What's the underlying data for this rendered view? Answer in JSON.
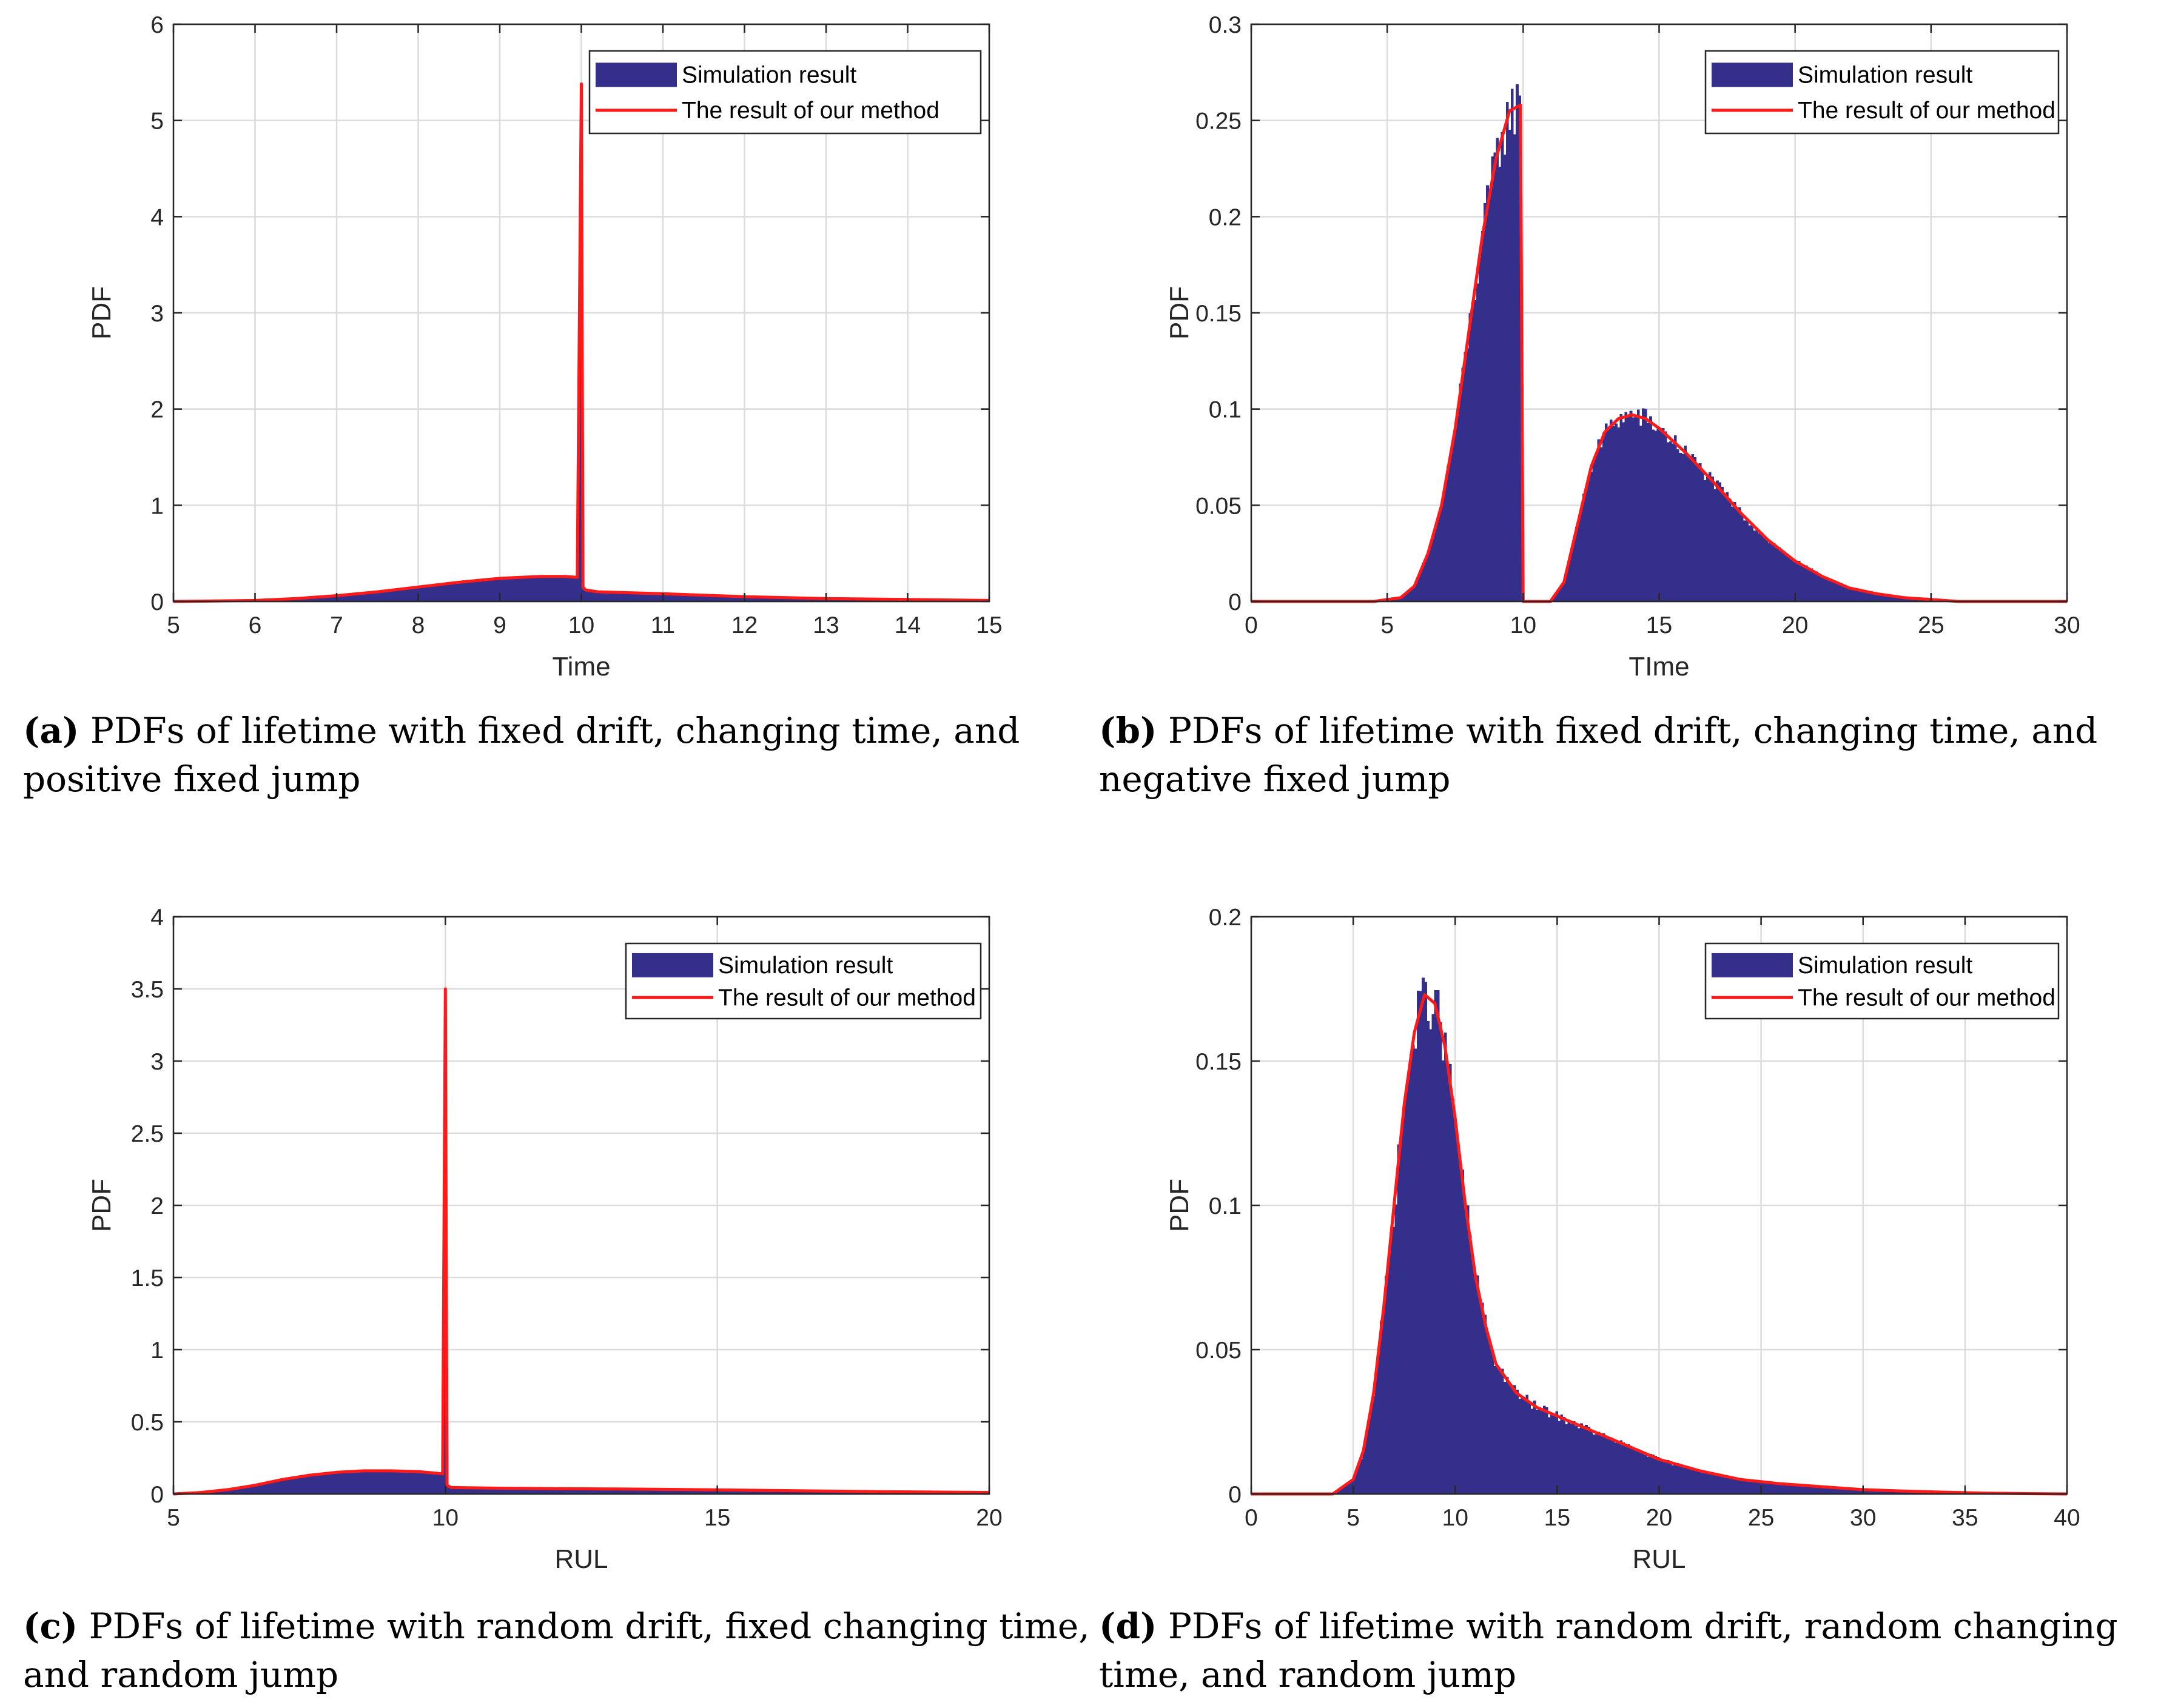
{
  "colors": {
    "histogram": "#332f8a",
    "curve": "#ff1a1a"
  },
  "chart_data": [
    {
      "id": "a",
      "type": "bar",
      "xlabel": "Time",
      "ylabel": "PDF",
      "xlim": [
        5,
        15
      ],
      "ylim": [
        0,
        6
      ],
      "xticks": [
        "5",
        "6",
        "7",
        "8",
        "9",
        "10",
        "11",
        "12",
        "13",
        "14",
        "15"
      ],
      "yticks": [
        "0",
        "1",
        "2",
        "3",
        "4",
        "5",
        "6"
      ],
      "legend": {
        "hist": "Simulation result",
        "line": "The result of our method",
        "placement": "top-right"
      },
      "x": [
        5.0,
        6.0,
        6.5,
        7.0,
        7.5,
        8.0,
        8.5,
        9.0,
        9.5,
        9.8,
        9.95,
        10.0,
        10.02,
        10.05,
        10.2,
        11.0,
        12.0,
        13.0,
        14.0,
        15.0
      ],
      "y": [
        0.0,
        0.01,
        0.03,
        0.06,
        0.1,
        0.15,
        0.2,
        0.24,
        0.26,
        0.26,
        0.25,
        5.38,
        0.15,
        0.12,
        0.1,
        0.08,
        0.05,
        0.03,
        0.02,
        0.01
      ]
    },
    {
      "id": "b",
      "type": "bar",
      "xlabel": "TIme",
      "ylabel": "PDF",
      "xlim": [
        0,
        30
      ],
      "ylim": [
        0,
        0.3
      ],
      "xticks": [
        "0",
        "5",
        "10",
        "15",
        "20",
        "25",
        "30"
      ],
      "yticks": [
        "0",
        "0.05",
        "0.1",
        "0.15",
        "0.2",
        "0.25",
        "0.3"
      ],
      "legend": {
        "hist": "Simulation result",
        "line": "The result of our method",
        "placement": "top-right"
      },
      "x": [
        0,
        4.5,
        5.5,
        6.0,
        6.5,
        7.0,
        7.5,
        8.0,
        8.5,
        9.0,
        9.5,
        9.9,
        10.0,
        10.5,
        11.0,
        11.5,
        12.0,
        12.5,
        13.0,
        13.5,
        14.0,
        14.5,
        15.0,
        16.0,
        17.0,
        18.0,
        19.0,
        20.0,
        21.0,
        22.0,
        23.0,
        24.0,
        25.0,
        26.0,
        30.0
      ],
      "y": [
        0,
        0.0,
        0.002,
        0.008,
        0.025,
        0.05,
        0.09,
        0.14,
        0.19,
        0.23,
        0.255,
        0.258,
        0.0,
        0.0,
        0.0,
        0.01,
        0.04,
        0.07,
        0.088,
        0.095,
        0.097,
        0.095,
        0.09,
        0.077,
        0.062,
        0.046,
        0.032,
        0.021,
        0.013,
        0.007,
        0.004,
        0.002,
        0.001,
        0.0,
        0.0
      ]
    },
    {
      "id": "c",
      "type": "bar",
      "xlabel": "RUL",
      "ylabel": "PDF",
      "xlim": [
        5,
        20
      ],
      "ylim": [
        0,
        4
      ],
      "xticks": [
        "5",
        "10",
        "15",
        "20"
      ],
      "yticks": [
        "0",
        "0.5",
        "1",
        "1.5",
        "2",
        "2.5",
        "3",
        "3.5",
        "4"
      ],
      "legend": {
        "hist": "Simulation result",
        "line": "The result of our method",
        "placement": "top-right"
      },
      "x": [
        5.0,
        5.5,
        6.0,
        6.5,
        7.0,
        7.5,
        8.0,
        8.5,
        9.0,
        9.5,
        9.95,
        10.0,
        10.03,
        10.1,
        11.0,
        12.0,
        13.0,
        14.0,
        15.0,
        16.0,
        17.0,
        18.0,
        19.0,
        20.0
      ],
      "y": [
        0.0,
        0.01,
        0.03,
        0.06,
        0.1,
        0.13,
        0.15,
        0.16,
        0.16,
        0.155,
        0.14,
        3.5,
        0.06,
        0.045,
        0.04,
        0.037,
        0.035,
        0.032,
        0.028,
        0.024,
        0.02,
        0.016,
        0.013,
        0.01
      ]
    },
    {
      "id": "d",
      "type": "bar",
      "xlabel": "RUL",
      "ylabel": "PDF",
      "xlim": [
        0,
        40
      ],
      "ylim": [
        0,
        0.2
      ],
      "xticks": [
        "0",
        "5",
        "10",
        "15",
        "20",
        "25",
        "30",
        "35",
        "40"
      ],
      "yticks": [
        "0",
        "0.05",
        "0.1",
        "0.15",
        "0.2"
      ],
      "legend": {
        "hist": "Simulation result",
        "line": "The result of our method",
        "placement": "top-right"
      },
      "x": [
        0,
        4.0,
        5.0,
        5.5,
        6.0,
        6.5,
        7.0,
        7.5,
        8.0,
        8.5,
        9.0,
        9.5,
        10.0,
        10.5,
        11.0,
        11.5,
        12.0,
        13.0,
        14.0,
        15.0,
        16.0,
        17.0,
        18.0,
        19.0,
        20.0,
        22.0,
        24.0,
        26.0,
        28.0,
        30.0,
        32.0,
        34.0,
        36.0,
        38.0,
        40.0
      ],
      "y": [
        0,
        0.0,
        0.005,
        0.015,
        0.035,
        0.065,
        0.1,
        0.135,
        0.16,
        0.173,
        0.17,
        0.155,
        0.13,
        0.1,
        0.075,
        0.058,
        0.045,
        0.035,
        0.03,
        0.027,
        0.024,
        0.021,
        0.018,
        0.015,
        0.012,
        0.008,
        0.005,
        0.0035,
        0.0025,
        0.0015,
        0.001,
        0.0006,
        0.0003,
        0.0001,
        0.0
      ]
    }
  ],
  "captions": [
    {
      "label": "(a)",
      "text": "PDFs of lifetime with fixed drift, changing time, and positive fixed jump"
    },
    {
      "label": "(b)",
      "text": "PDFs of lifetime with fixed drift, changing time, and negative fixed jump"
    },
    {
      "label": "(c)",
      "text": "PDFs of lifetime with random drift, fixed changing time, and random jump"
    },
    {
      "label": "(d)",
      "text": "PDFs of lifetime with random drift, random changing time, and random jump"
    }
  ]
}
